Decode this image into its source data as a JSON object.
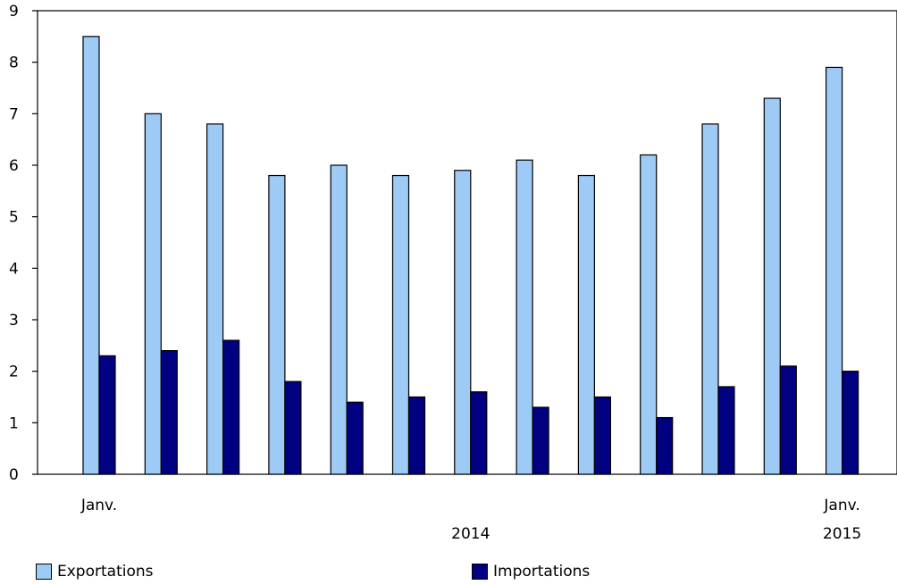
{
  "chart_data": {
    "type": "bar",
    "categories": [
      "Janv.",
      "",
      "",
      "",
      "",
      "",
      "",
      "",
      "",
      "",
      "",
      "",
      "Janv."
    ],
    "period_labels": [
      "",
      "",
      "",
      "",
      "",
      "",
      "2014",
      "",
      "",
      "",
      "",
      "",
      "2015"
    ],
    "series": [
      {
        "name": "Exportations",
        "color": "#9dcbf5",
        "values": [
          8.5,
          7.0,
          6.8,
          5.8,
          6.0,
          5.8,
          5.9,
          6.1,
          5.8,
          6.2,
          6.8,
          7.3,
          7.9
        ]
      },
      {
        "name": "Importations",
        "color": "#000080",
        "values": [
          2.3,
          2.4,
          2.6,
          1.8,
          1.4,
          1.5,
          1.6,
          1.3,
          1.5,
          1.1,
          1.7,
          2.1,
          2.0
        ]
      }
    ],
    "ylim": [
      0,
      9
    ],
    "yticks": [
      "0",
      "1",
      "2",
      "3",
      "4",
      "5",
      "6",
      "7",
      "8",
      "9"
    ],
    "title": "",
    "xlabel": "",
    "ylabel": "",
    "grid": false,
    "legend_position": "bottom"
  }
}
